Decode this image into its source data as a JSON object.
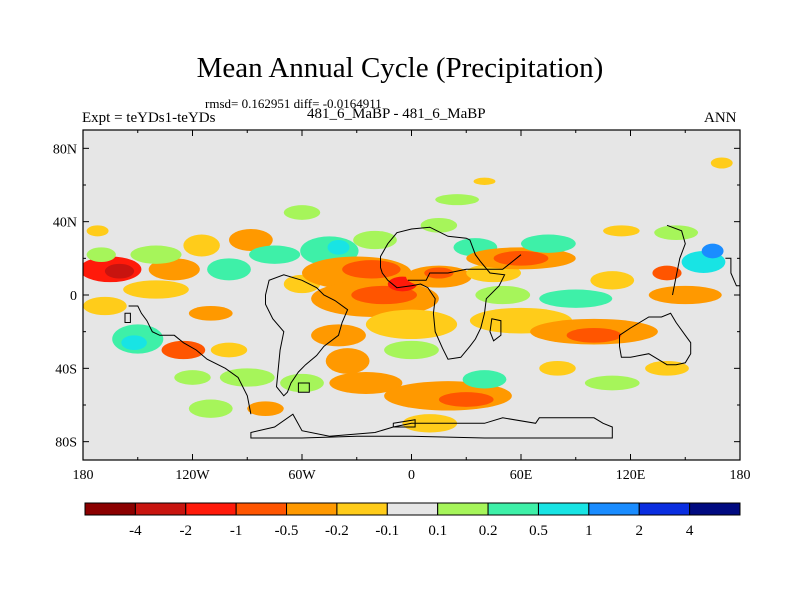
{
  "header": {
    "title": "Mean Annual Cycle (Precipitation)",
    "stats": "rmsd= 0.162951 diff= -0.0164911",
    "left_label": "Expt = teYDs1-teYDs",
    "center_label": "481_6_MaBP - 481_6_MaBP",
    "right_label": "ANN"
  },
  "chart_data": {
    "type": "heatmap",
    "title": "Mean Annual Cycle (Precipitation)",
    "subtitle": "rmsd= 0.162951 diff= -0.0164911",
    "xlabel": "",
    "ylabel": "",
    "xlim": [
      -180,
      180
    ],
    "ylim": [
      -90,
      90
    ],
    "x_ticks": [
      {
        "value": -180,
        "label": "180"
      },
      {
        "value": -120,
        "label": "120W"
      },
      {
        "value": -60,
        "label": "60W"
      },
      {
        "value": 0,
        "label": "0"
      },
      {
        "value": 60,
        "label": "60E"
      },
      {
        "value": 120,
        "label": "120E"
      },
      {
        "value": 180,
        "label": "180"
      }
    ],
    "y_ticks": [
      {
        "value": 80,
        "label": "80N"
      },
      {
        "value": 40,
        "label": "40N"
      },
      {
        "value": 0,
        "label": "0"
      },
      {
        "value": -40,
        "label": "40S"
      },
      {
        "value": -80,
        "label": "80S"
      }
    ],
    "colorbar": {
      "levels": [
        "-4",
        "-2",
        "-1",
        "-0.5",
        "-0.2",
        "-0.1",
        "0.1",
        "0.2",
        "0.5",
        "1",
        "2",
        "4"
      ],
      "colors": [
        "#8b0000",
        "#c8140f",
        "#ff1a0a",
        "#ff5500",
        "#ff9900",
        "#ffcc1a",
        "#e6e6e6",
        "#a6f55a",
        "#3ef0a8",
        "#18e4e4",
        "#1a8cff",
        "#0a2ee0",
        "#000a80"
      ]
    },
    "regions": [
      {
        "lon": -165,
        "lat": 14,
        "rx": 17,
        "ry": 7,
        "cls": 2
      },
      {
        "lon": -160,
        "lat": 13,
        "rx": 8,
        "ry": 4,
        "cls": 1
      },
      {
        "lon": -130,
        "lat": 14,
        "rx": 14,
        "ry": 6,
        "cls": 4
      },
      {
        "lon": -140,
        "lat": 3,
        "rx": 18,
        "ry": 5,
        "cls": 5
      },
      {
        "lon": -168,
        "lat": -6,
        "rx": 12,
        "ry": 5,
        "cls": 5
      },
      {
        "lon": -150,
        "lat": -24,
        "rx": 14,
        "ry": 8,
        "cls": 8
      },
      {
        "lon": -152,
        "lat": -26,
        "rx": 7,
        "ry": 4,
        "cls": 9
      },
      {
        "lon": -125,
        "lat": -30,
        "rx": 12,
        "ry": 5,
        "cls": 3
      },
      {
        "lon": -170,
        "lat": 22,
        "rx": 8,
        "ry": 4,
        "cls": 7
      },
      {
        "lon": -140,
        "lat": 22,
        "rx": 14,
        "ry": 5,
        "cls": 7
      },
      {
        "lon": -115,
        "lat": 27,
        "rx": 10,
        "ry": 6,
        "cls": 5
      },
      {
        "lon": -100,
        "lat": 14,
        "rx": 12,
        "ry": 6,
        "cls": 8
      },
      {
        "lon": -88,
        "lat": 30,
        "rx": 12,
        "ry": 6,
        "cls": 4
      },
      {
        "lon": -75,
        "lat": 22,
        "rx": 14,
        "ry": 5,
        "cls": 8
      },
      {
        "lon": -60,
        "lat": 6,
        "rx": 10,
        "ry": 5,
        "cls": 5
      },
      {
        "lon": -60,
        "lat": 45,
        "rx": 10,
        "ry": 4,
        "cls": 7
      },
      {
        "lon": -45,
        "lat": 24,
        "rx": 16,
        "ry": 8,
        "cls": 8
      },
      {
        "lon": -40,
        "lat": 26,
        "rx": 6,
        "ry": 4,
        "cls": 9
      },
      {
        "lon": -20,
        "lat": 30,
        "rx": 12,
        "ry": 5,
        "cls": 7
      },
      {
        "lon": -30,
        "lat": 12,
        "rx": 30,
        "ry": 9,
        "cls": 4
      },
      {
        "lon": -22,
        "lat": 14,
        "rx": 16,
        "ry": 5,
        "cls": 3
      },
      {
        "lon": -20,
        "lat": -2,
        "rx": 35,
        "ry": 10,
        "cls": 4
      },
      {
        "lon": -15,
        "lat": 0,
        "rx": 18,
        "ry": 5,
        "cls": 3
      },
      {
        "lon": -5,
        "lat": 6,
        "rx": 8,
        "ry": 4,
        "cls": 2
      },
      {
        "lon": 0,
        "lat": -16,
        "rx": 25,
        "ry": 8,
        "cls": 5
      },
      {
        "lon": -40,
        "lat": -22,
        "rx": 15,
        "ry": 6,
        "cls": 4
      },
      {
        "lon": -35,
        "lat": -36,
        "rx": 12,
        "ry": 7,
        "cls": 4
      },
      {
        "lon": -25,
        "lat": -48,
        "rx": 20,
        "ry": 6,
        "cls": 4
      },
      {
        "lon": -60,
        "lat": -48,
        "rx": 12,
        "ry": 5,
        "cls": 7
      },
      {
        "lon": -90,
        "lat": -45,
        "rx": 15,
        "ry": 5,
        "cls": 7
      },
      {
        "lon": -100,
        "lat": -30,
        "rx": 10,
        "ry": 4,
        "cls": 5
      },
      {
        "lon": -120,
        "lat": -45,
        "rx": 10,
        "ry": 4,
        "cls": 7
      },
      {
        "lon": -110,
        "lat": -62,
        "rx": 12,
        "ry": 5,
        "cls": 7
      },
      {
        "lon": -80,
        "lat": -62,
        "rx": 10,
        "ry": 4,
        "cls": 4
      },
      {
        "lon": 0,
        "lat": -30,
        "rx": 15,
        "ry": 5,
        "cls": 7
      },
      {
        "lon": 20,
        "lat": -55,
        "rx": 35,
        "ry": 8,
        "cls": 4
      },
      {
        "lon": 30,
        "lat": -57,
        "rx": 15,
        "ry": 4,
        "cls": 3
      },
      {
        "lon": 40,
        "lat": -46,
        "rx": 12,
        "ry": 5,
        "cls": 8
      },
      {
        "lon": 10,
        "lat": -70,
        "rx": 15,
        "ry": 5,
        "cls": 5
      },
      {
        "lon": 15,
        "lat": 10,
        "rx": 18,
        "ry": 6,
        "cls": 4
      },
      {
        "lon": 15,
        "lat": 12,
        "rx": 8,
        "ry": 3,
        "cls": 3
      },
      {
        "lon": 35,
        "lat": 26,
        "rx": 12,
        "ry": 5,
        "cls": 8
      },
      {
        "lon": 15,
        "lat": 38,
        "rx": 10,
        "ry": 4,
        "cls": 7
      },
      {
        "lon": 45,
        "lat": 12,
        "rx": 15,
        "ry": 5,
        "cls": 5
      },
      {
        "lon": 60,
        "lat": 20,
        "rx": 30,
        "ry": 6,
        "cls": 4
      },
      {
        "lon": 60,
        "lat": 20,
        "rx": 15,
        "ry": 4,
        "cls": 3
      },
      {
        "lon": 75,
        "lat": 28,
        "rx": 15,
        "ry": 5,
        "cls": 8
      },
      {
        "lon": 50,
        "lat": 0,
        "rx": 15,
        "ry": 5,
        "cls": 7
      },
      {
        "lon": 60,
        "lat": -14,
        "rx": 28,
        "ry": 7,
        "cls": 5
      },
      {
        "lon": 100,
        "lat": -20,
        "rx": 35,
        "ry": 7,
        "cls": 4
      },
      {
        "lon": 100,
        "lat": -22,
        "rx": 15,
        "ry": 4,
        "cls": 3
      },
      {
        "lon": 90,
        "lat": -2,
        "rx": 20,
        "ry": 5,
        "cls": 8
      },
      {
        "lon": 110,
        "lat": 8,
        "rx": 12,
        "ry": 5,
        "cls": 5
      },
      {
        "lon": 150,
        "lat": 0,
        "rx": 20,
        "ry": 5,
        "cls": 4
      },
      {
        "lon": 160,
        "lat": 18,
        "rx": 12,
        "ry": 6,
        "cls": 9
      },
      {
        "lon": 165,
        "lat": 24,
        "rx": 6,
        "ry": 4,
        "cls": 10
      },
      {
        "lon": 140,
        "lat": 12,
        "rx": 8,
        "ry": 4,
        "cls": 3
      },
      {
        "lon": 145,
        "lat": 34,
        "rx": 12,
        "ry": 4,
        "cls": 7
      },
      {
        "lon": 115,
        "lat": 35,
        "rx": 10,
        "ry": 3,
        "cls": 5
      },
      {
        "lon": 170,
        "lat": 72,
        "rx": 6,
        "ry": 3,
        "cls": 5
      },
      {
        "lon": 40,
        "lat": 62,
        "rx": 6,
        "ry": 2,
        "cls": 5
      },
      {
        "lon": 25,
        "lat": 52,
        "rx": 12,
        "ry": 3,
        "cls": 7
      },
      {
        "lon": 110,
        "lat": -48,
        "rx": 15,
        "ry": 4,
        "cls": 7
      },
      {
        "lon": 140,
        "lat": -40,
        "rx": 12,
        "ry": 4,
        "cls": 5
      },
      {
        "lon": 80,
        "lat": -40,
        "rx": 10,
        "ry": 4,
        "cls": 5
      },
      {
        "lon": -172,
        "lat": 35,
        "rx": 6,
        "ry": 3,
        "cls": 5
      },
      {
        "lon": -110,
        "lat": -10,
        "rx": 12,
        "ry": 4,
        "cls": 4
      }
    ],
    "coastlines": [
      {
        "name": "antarctica",
        "closed": true,
        "pts": [
          [
            -88,
            -78
          ],
          [
            -60,
            -78
          ],
          [
            -30,
            -77
          ],
          [
            0,
            -77
          ],
          [
            40,
            -78
          ],
          [
            60,
            -78
          ],
          [
            100,
            -78
          ],
          [
            110,
            -78
          ],
          [
            110,
            -72
          ],
          [
            105,
            -70
          ],
          [
            100,
            -67
          ],
          [
            90,
            -67
          ],
          [
            70,
            -67
          ],
          [
            68,
            -70
          ],
          [
            50,
            -67
          ],
          [
            40,
            -70
          ],
          [
            20,
            -70
          ],
          [
            0,
            -70
          ],
          [
            -10,
            -72
          ],
          [
            -20,
            -75
          ],
          [
            -45,
            -77
          ],
          [
            -60,
            -74
          ],
          [
            -65,
            -65
          ],
          [
            -75,
            -72
          ],
          [
            -88,
            -75
          ]
        ]
      },
      {
        "name": "south-america",
        "closed": true,
        "pts": [
          [
            -80,
            0
          ],
          [
            -78,
            8
          ],
          [
            -70,
            11
          ],
          [
            -60,
            8
          ],
          [
            -52,
            4
          ],
          [
            -48,
            0
          ],
          [
            -42,
            -3
          ],
          [
            -35,
            -8
          ],
          [
            -38,
            -15
          ],
          [
            -40,
            -22
          ],
          [
            -48,
            -28
          ],
          [
            -52,
            -33
          ],
          [
            -58,
            -38
          ],
          [
            -62,
            -42
          ],
          [
            -66,
            -48
          ],
          [
            -68,
            -53
          ],
          [
            -70,
            -55
          ],
          [
            -74,
            -50
          ],
          [
            -73,
            -40
          ],
          [
            -72,
            -30
          ],
          [
            -70,
            -20
          ],
          [
            -76,
            -13
          ],
          [
            -80,
            -5
          ]
        ]
      },
      {
        "name": "africa",
        "closed": true,
        "pts": [
          [
            -17,
            15
          ],
          [
            -17,
            21
          ],
          [
            -13,
            28
          ],
          [
            -8,
            34
          ],
          [
            0,
            36
          ],
          [
            10,
            37
          ],
          [
            20,
            32
          ],
          [
            30,
            31
          ],
          [
            32,
            30
          ],
          [
            35,
            22
          ],
          [
            38,
            18
          ],
          [
            43,
            12
          ],
          [
            51,
            11
          ],
          [
            48,
            5
          ],
          [
            41,
            -2
          ],
          [
            40,
            -10
          ],
          [
            38,
            -18
          ],
          [
            35,
            -24
          ],
          [
            32,
            -28
          ],
          [
            27,
            -34
          ],
          [
            20,
            -35
          ],
          [
            17,
            -29
          ],
          [
            13,
            -20
          ],
          [
            12,
            -10
          ],
          [
            13,
            -2
          ],
          [
            9,
            4
          ],
          [
            5,
            6
          ],
          [
            0,
            5
          ],
          [
            -8,
            4
          ],
          [
            -13,
            8
          ],
          [
            -16,
            12
          ]
        ]
      },
      {
        "name": "australia",
        "closed": true,
        "pts": [
          [
            114,
            -22
          ],
          [
            120,
            -18
          ],
          [
            130,
            -12
          ],
          [
            137,
            -12
          ],
          [
            142,
            -10
          ],
          [
            145,
            -15
          ],
          [
            150,
            -22
          ],
          [
            153,
            -26
          ],
          [
            153,
            -32
          ],
          [
            150,
            -37
          ],
          [
            145,
            -38
          ],
          [
            140,
            -38
          ],
          [
            135,
            -35
          ],
          [
            130,
            -32
          ],
          [
            120,
            -34
          ],
          [
            115,
            -34
          ],
          [
            114,
            -28
          ]
        ]
      },
      {
        "name": "indochina-arabia",
        "closed": false,
        "pts": [
          [
            -2,
            8
          ],
          [
            8,
            8
          ],
          [
            10,
            12
          ],
          [
            20,
            12
          ],
          [
            30,
            14
          ],
          [
            40,
            14
          ],
          [
            50,
            14
          ],
          [
            55,
            18
          ],
          [
            60,
            22
          ]
        ]
      },
      {
        "name": "mexico",
        "closed": false,
        "pts": [
          [
            -155,
            -6
          ],
          [
            -150,
            -6
          ],
          [
            -148,
            -10
          ],
          [
            -145,
            -14
          ],
          [
            -142,
            -20
          ],
          [
            -138,
            -22
          ],
          [
            -130,
            -22
          ],
          [
            -125,
            -26
          ],
          [
            -118,
            -30
          ],
          [
            -112,
            -35
          ],
          [
            -102,
            -40
          ],
          [
            -95,
            -45
          ],
          [
            -90,
            -55
          ],
          [
            -88,
            -65
          ]
        ]
      },
      {
        "name": "japan-asia",
        "closed": false,
        "pts": [
          [
            140,
            38
          ],
          [
            148,
            35
          ],
          [
            150,
            28
          ],
          [
            147,
            20
          ],
          [
            145,
            10
          ],
          [
            143,
            0
          ]
        ]
      },
      {
        "name": "pacific-east",
        "closed": false,
        "pts": [
          [
            172,
            20
          ],
          [
            175,
            20
          ],
          [
            175,
            12
          ],
          [
            178,
            5
          ],
          [
            180,
            5
          ]
        ]
      },
      {
        "name": "hawaii",
        "closed": true,
        "pts": [
          [
            -157,
            -10
          ],
          [
            -154,
            -10
          ],
          [
            -154,
            -15
          ],
          [
            -157,
            -15
          ]
        ]
      },
      {
        "name": "caribbean",
        "closed": true,
        "pts": [
          [
            -62,
            -48
          ],
          [
            -56,
            -48
          ],
          [
            -56,
            -53
          ],
          [
            -62,
            -53
          ]
        ]
      },
      {
        "name": "madagascar",
        "closed": true,
        "pts": [
          [
            44,
            -13
          ],
          [
            49,
            -14
          ],
          [
            49,
            -22
          ],
          [
            45,
            -25
          ],
          [
            43,
            -20
          ]
        ]
      },
      {
        "name": "antarctic-isl",
        "closed": true,
        "pts": [
          [
            -10,
            -70
          ],
          [
            2,
            -68
          ],
          [
            2,
            -72
          ],
          [
            -10,
            -72
          ]
        ]
      }
    ]
  }
}
